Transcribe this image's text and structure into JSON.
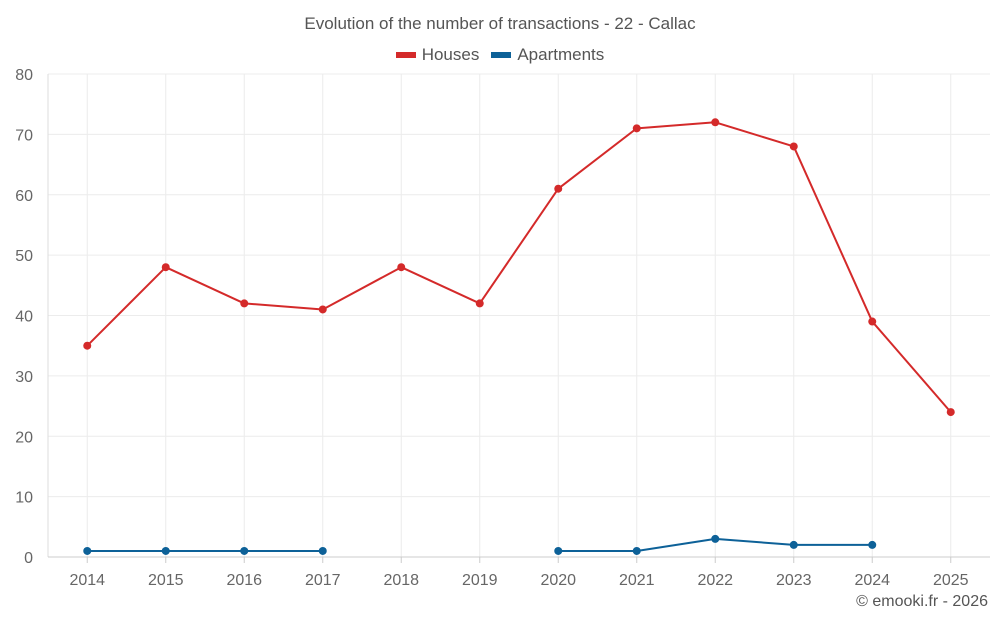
{
  "chart_data": {
    "type": "line",
    "title": "Evolution of the number of transactions - 22 - Callac",
    "categories": [
      "2014",
      "2015",
      "2016",
      "2017",
      "2018",
      "2019",
      "2020",
      "2021",
      "2022",
      "2023",
      "2024",
      "2025"
    ],
    "ylim": [
      0,
      80
    ],
    "yticks": [
      0,
      10,
      20,
      30,
      40,
      50,
      60,
      70,
      80
    ],
    "xlabel": "",
    "ylabel": "",
    "legend_position": "top-center",
    "grid": true,
    "series": [
      {
        "name": "Houses",
        "color": "#d42a2a",
        "values": [
          35,
          48,
          42,
          41,
          48,
          42,
          61,
          71,
          72,
          68,
          39,
          24
        ]
      },
      {
        "name": "Apartments",
        "color": "#0d6198",
        "values": [
          1,
          1,
          1,
          1,
          null,
          null,
          1,
          1,
          3,
          2,
          2,
          null
        ]
      }
    ]
  },
  "credit": "© emooki.fr - 2026"
}
